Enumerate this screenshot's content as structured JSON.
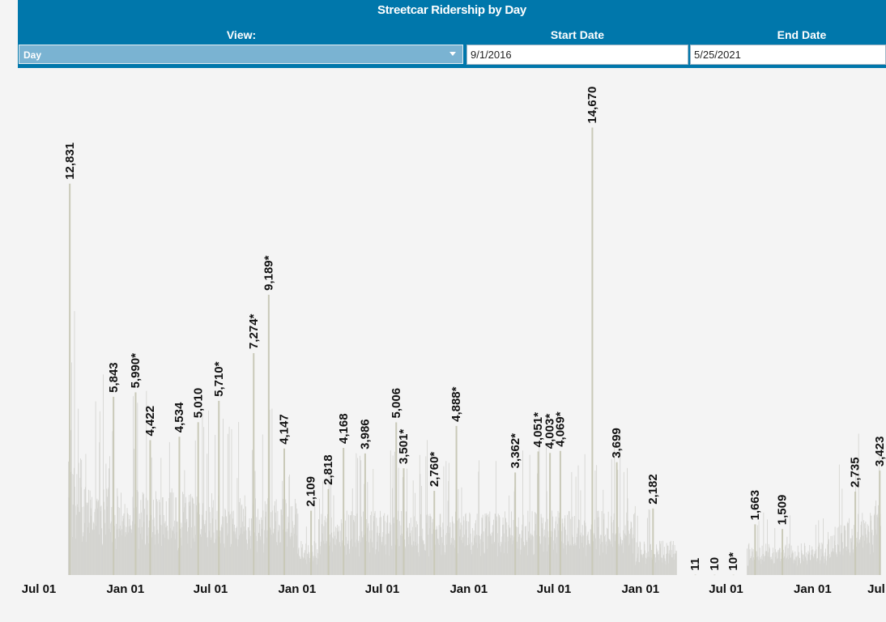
{
  "header": {
    "title": "Streetcar Ridership by Day",
    "view_label": "View:",
    "view_value": "Day",
    "start_label": "Start Date",
    "start_value": "9/1/2016",
    "end_label": "End Date",
    "end_value": "5/25/2021"
  },
  "colors": {
    "header_bg": "#0077ab",
    "select_bg": "#7ab3d2",
    "bar_fill": "#d4d4d0",
    "bar_highlight": "#c9c9b8",
    "background": "#f4f4f4"
  },
  "chart_data": {
    "type": "bar",
    "title": "",
    "x_domain": [
      "2016-07-01",
      "2021-06-06"
    ],
    "y_max": 15400,
    "x_tick_labels": [
      {
        "date": "2016-07-01",
        "label": "Jul 01"
      },
      {
        "date": "2017-01-01",
        "label": "Jan 01"
      },
      {
        "date": "2017-07-01",
        "label": "Jul 01"
      },
      {
        "date": "2018-01-01",
        "label": "Jan 01"
      },
      {
        "date": "2018-07-01",
        "label": "Jul 01"
      },
      {
        "date": "2019-01-01",
        "label": "Jan 01"
      },
      {
        "date": "2019-07-01",
        "label": "Jul 01"
      },
      {
        "date": "2020-01-01",
        "label": "Jan 01"
      },
      {
        "date": "2020-07-01",
        "label": "Jul 01"
      },
      {
        "date": "2021-01-01",
        "label": "Jan 01"
      },
      {
        "date": "2021-07-01",
        "label": "Jul"
      }
    ],
    "labeled_points": [
      {
        "date": "2016-09-04",
        "value": 12831,
        "label": "12,831"
      },
      {
        "date": "2016-12-06",
        "value": 5843,
        "label": "5,843"
      },
      {
        "date": "2017-01-22",
        "value": 5990,
        "label": "5,990*"
      },
      {
        "date": "2017-02-22",
        "value": 4422,
        "label": "4,422"
      },
      {
        "date": "2017-04-25",
        "value": 4534,
        "label": "4,534"
      },
      {
        "date": "2017-06-04",
        "value": 5010,
        "label": "5,010"
      },
      {
        "date": "2017-07-18",
        "value": 5710,
        "label": "5,710*"
      },
      {
        "date": "2017-09-30",
        "value": 7274,
        "label": "7,274*"
      },
      {
        "date": "2017-11-01",
        "value": 9189,
        "label": "9,189*"
      },
      {
        "date": "2017-12-04",
        "value": 4147,
        "label": "4,147"
      },
      {
        "date": "2018-01-30",
        "value": 2109,
        "label": "2,109"
      },
      {
        "date": "2018-03-08",
        "value": 2818,
        "label": "2,818"
      },
      {
        "date": "2018-04-09",
        "value": 4168,
        "label": "4,168"
      },
      {
        "date": "2018-05-25",
        "value": 3986,
        "label": "3,986"
      },
      {
        "date": "2018-07-30",
        "value": 5006,
        "label": "5,006"
      },
      {
        "date": "2018-08-15",
        "value": 3501,
        "label": "3,501*"
      },
      {
        "date": "2018-10-19",
        "value": 2760,
        "label": "2,760*"
      },
      {
        "date": "2018-12-05",
        "value": 4888,
        "label": "4,888*"
      },
      {
        "date": "2019-04-09",
        "value": 3362,
        "label": "3,362*"
      },
      {
        "date": "2019-05-28",
        "value": 4051,
        "label": "4,051*"
      },
      {
        "date": "2019-06-22",
        "value": 4003,
        "label": "4,003*"
      },
      {
        "date": "2019-07-14",
        "value": 4069,
        "label": "4,069*"
      },
      {
        "date": "2019-09-20",
        "value": 14670,
        "label": "14,670"
      },
      {
        "date": "2019-11-11",
        "value": 3699,
        "label": "3,699"
      },
      {
        "date": "2020-01-27",
        "value": 2182,
        "label": "2,182"
      },
      {
        "date": "2020-04-26",
        "value": 11,
        "label": "11"
      },
      {
        "date": "2020-06-06",
        "value": 10,
        "label": "10"
      },
      {
        "date": "2020-07-16",
        "value": 10,
        "label": "10*"
      },
      {
        "date": "2020-08-31",
        "value": 1663,
        "label": "1,663"
      },
      {
        "date": "2020-10-28",
        "value": 1509,
        "label": "1,509"
      },
      {
        "date": "2021-04-01",
        "value": 2735,
        "label": "2,735"
      },
      {
        "date": "2021-05-23",
        "value": 3423,
        "label": "3,423"
      }
    ]
  }
}
